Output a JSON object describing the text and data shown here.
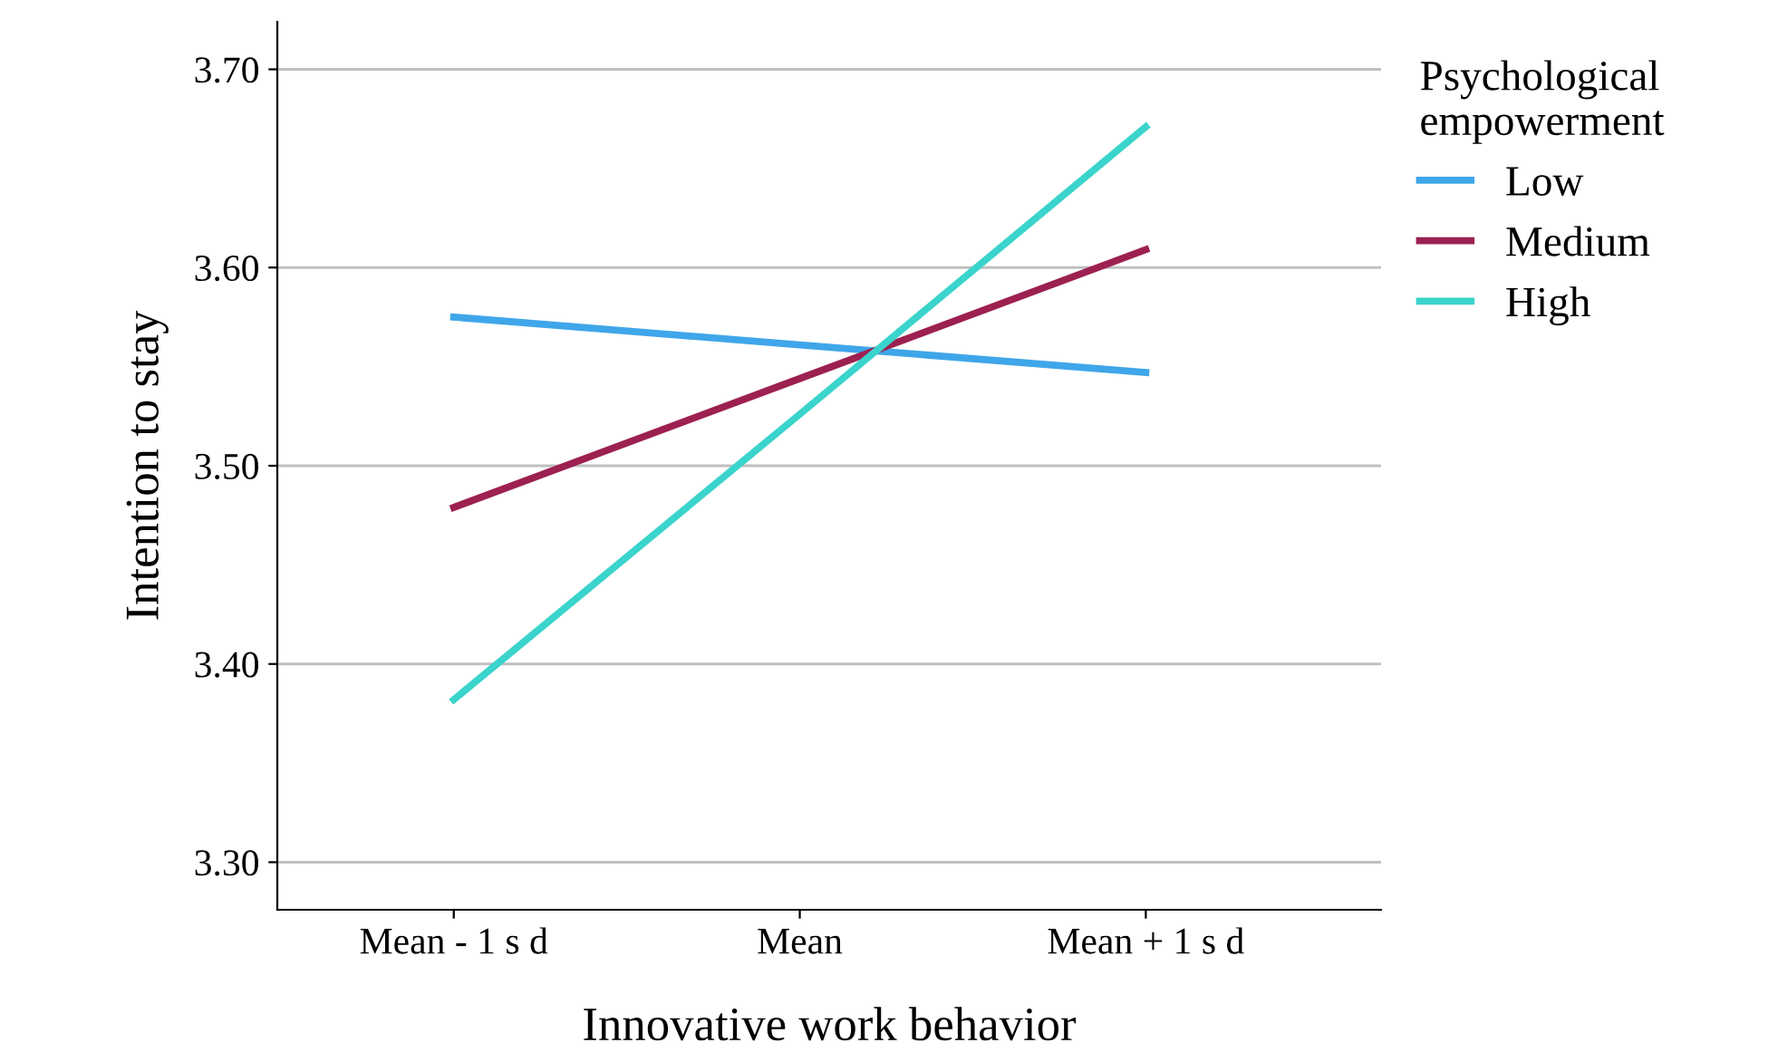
{
  "chart_data": {
    "type": "line",
    "xlabel": "Innovative work behavior",
    "ylabel": "Intention to stay",
    "legend_title": "Psychological\nempowerment",
    "categories": [
      "Mean - 1 s d",
      "Mean",
      "Mean + 1 s d"
    ],
    "series": [
      {
        "name": "Low",
        "color": "#3fa6ea",
        "values": [
          3.575,
          3.561,
          3.547
        ]
      },
      {
        "name": "Medium",
        "color": "#9c2150",
        "values": [
          3.479,
          3.544,
          3.609
        ]
      },
      {
        "name": "High",
        "color": "#3ad4cc",
        "values": [
          3.382,
          3.526,
          3.671
        ]
      }
    ],
    "ylim": [
      3.276,
      3.724
    ],
    "yticks": [
      {
        "value": 3.3,
        "label": "3.30"
      },
      {
        "value": 3.4,
        "label": "3.40"
      },
      {
        "value": 3.5,
        "label": "3.50"
      },
      {
        "value": 3.6,
        "label": "3.60"
      },
      {
        "value": 3.7,
        "label": "3.70"
      }
    ],
    "grid": "y",
    "legend": "top right",
    "marker": "none",
    "line_style": "solid"
  }
}
